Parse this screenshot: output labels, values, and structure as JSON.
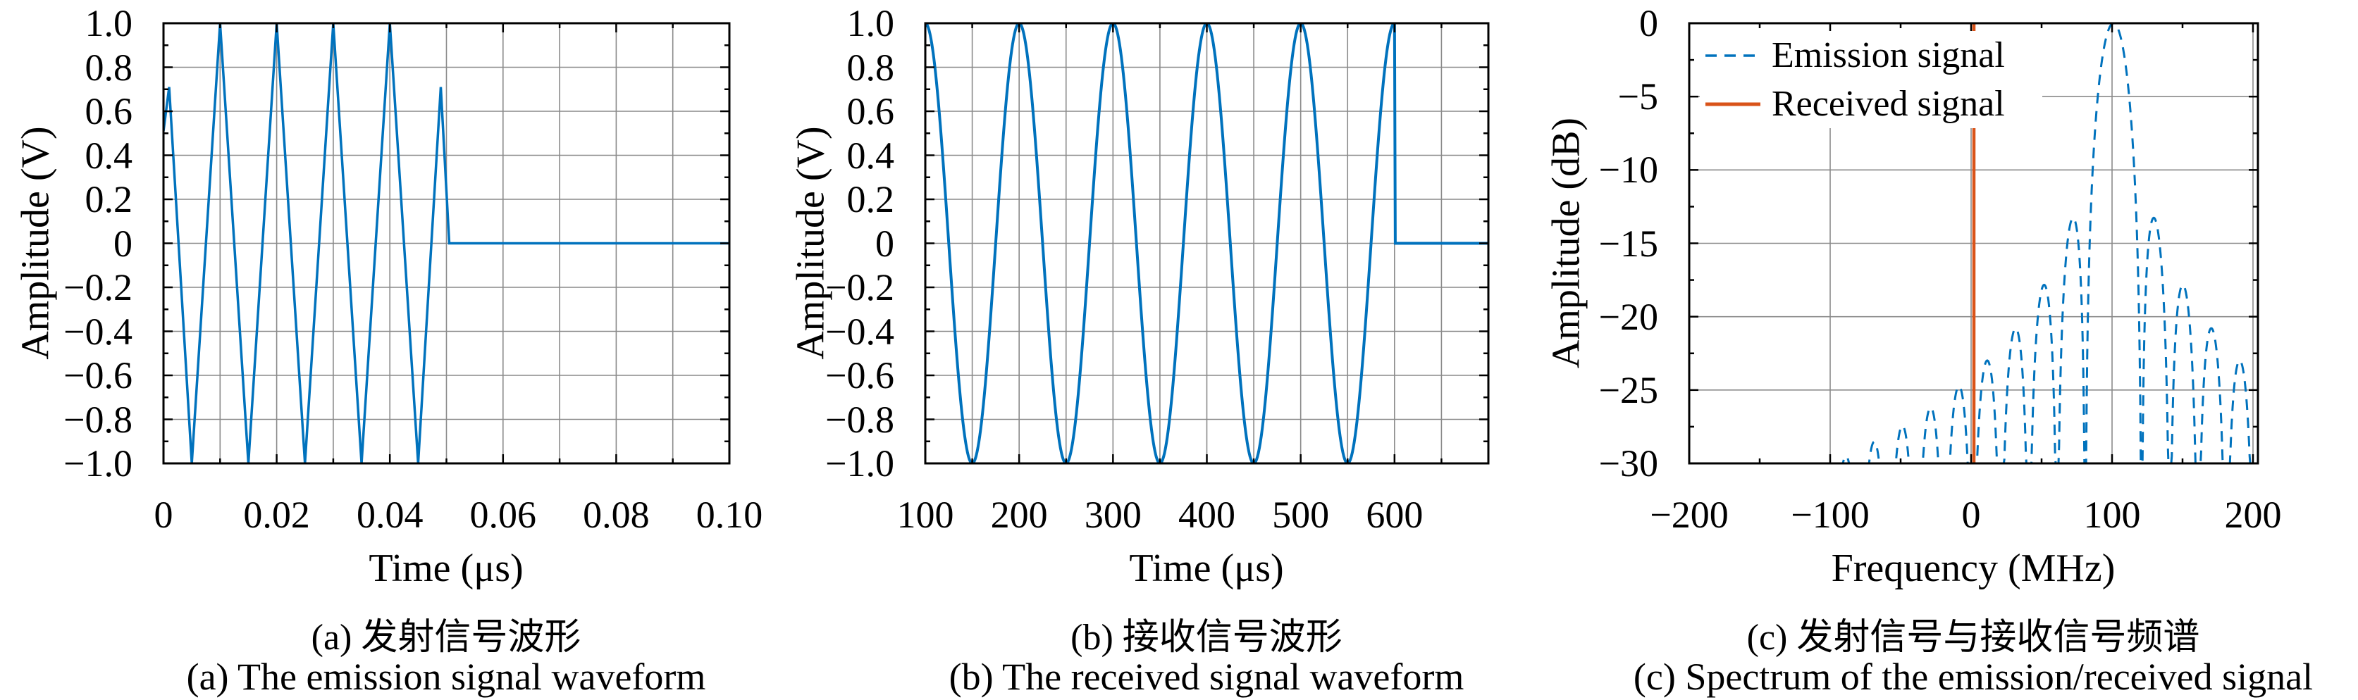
{
  "chart_data": [
    {
      "id": "a",
      "type": "line",
      "title_zh": "(a) 发射信号波形",
      "title_en": "(a) The emission signal waveform",
      "xlabel": "Time (μs)",
      "ylabel": "Amplitude (V)",
      "grid": "on",
      "axes": {
        "xlim": [
          0,
          0.1
        ],
        "ylim": [
          -1,
          1
        ],
        "xticks": {
          "values": [
            0,
            0.02,
            0.04,
            0.06,
            0.08,
            0.1
          ],
          "labels": [
            "0",
            "0.02",
            "0.04",
            "0.06",
            "0.08",
            "0.10"
          ]
        },
        "yticks": {
          "values": [
            1,
            0.8,
            0.6,
            0.4,
            0.2,
            0,
            -0.2,
            -0.4,
            -0.6,
            -0.8,
            -1
          ],
          "labels": [
            "1.0",
            "0.8",
            "0.6",
            "0.4",
            "0.2",
            "0",
            "−0.2",
            "−0.4",
            "−0.6",
            "−0.8",
            "−1.0"
          ]
        },
        "x_minor": [
          0.01,
          0.03,
          0.05,
          0.07,
          0.09
        ],
        "y_minor": [
          0.9,
          0.7,
          0.5,
          0.3,
          0.1,
          -0.1,
          -0.3,
          -0.5,
          -0.7,
          -0.9
        ],
        "x_grid": [
          0.01,
          0.02,
          0.03,
          0.04,
          0.05,
          0.06,
          0.07,
          0.08,
          0.09
        ],
        "y_grid": [
          0.8,
          0.6,
          0.4,
          0.2,
          0,
          -0.2,
          -0.4,
          -0.6,
          -0.8
        ]
      },
      "series": [
        {
          "name": "Emission signal",
          "color": "#0072BD",
          "width": 3.5,
          "kind": "polyline",
          "description": "100 MHz sine burst, 5 cycles over 0 to 0.05 us, amplitude 1 V, zero afterwards (coarsely sampled polyline)",
          "points": [
            [
              0,
              0.51
            ],
            [
              0.001,
              0.71
            ],
            [
              0.005,
              -1
            ],
            [
              0.01,
              1
            ],
            [
              0.015,
              -1
            ],
            [
              0.02,
              1
            ],
            [
              0.025,
              -1
            ],
            [
              0.03,
              1
            ],
            [
              0.035,
              -1
            ],
            [
              0.04,
              1
            ],
            [
              0.045,
              -1
            ],
            [
              0.049,
              0.71
            ],
            [
              0.0505,
              0
            ],
            [
              0.1,
              0
            ]
          ]
        }
      ]
    },
    {
      "id": "b",
      "type": "line",
      "title_zh": "(b) 接收信号波形",
      "title_en": "(b) The received signal waveform",
      "xlabel": "Time (μs)",
      "ylabel": "Amplitude (V)",
      "grid": "on",
      "axes": {
        "xlim": [
          100,
          700
        ],
        "ylim": [
          -1,
          1
        ],
        "xticks": {
          "values": [
            100,
            200,
            300,
            400,
            500,
            600
          ],
          "labels": [
            "100",
            "200",
            "300",
            "400",
            "500",
            "600"
          ]
        },
        "yticks": {
          "values": [
            1,
            0.8,
            0.6,
            0.4,
            0.2,
            0,
            -0.2,
            -0.4,
            -0.6,
            -0.8,
            -1
          ],
          "labels": [
            "1.0",
            "0.8",
            "0.6",
            "0.4",
            "0.2",
            "0",
            "−0.2",
            "−0.4",
            "−0.6",
            "−0.8",
            "−1.0"
          ]
        },
        "x_minor": [
          150,
          250,
          350,
          450,
          550,
          650
        ],
        "y_minor": [
          0.9,
          0.7,
          0.5,
          0.3,
          0.1,
          -0.1,
          -0.3,
          -0.5,
          -0.7,
          -0.9
        ],
        "x_grid": [
          150,
          200,
          250,
          300,
          350,
          400,
          450,
          500,
          550,
          600,
          650
        ],
        "y_grid": [
          0.8,
          0.6,
          0.4,
          0.2,
          0,
          -0.2,
          -0.4,
          -0.6,
          -0.8
        ]
      },
      "series": [
        {
          "name": "Received signal",
          "color": "#0072BD",
          "width": 4,
          "kind": "cosine_burst",
          "description": "Cosine burst, period 100 us (peaks at 100,200,300,400,500,600 us; troughs at 150...550 us), amplitude 1 V from 100 to 600 us, zero from 600 to 700 us",
          "params": {
            "t_start": 100,
            "t_end": 600,
            "period": 100,
            "amplitude": 1,
            "samples": 500,
            "flat_until": 700,
            "flat_value": 0
          }
        }
      ]
    },
    {
      "id": "c",
      "type": "line",
      "title_zh": "(c) 发射信号与接收信号频谱",
      "title_en": "(c) Spectrum of the emission/received signal",
      "xlabel": "Frequency (MHz)",
      "ylabel": "Amplitude (dB)",
      "grid": "on",
      "axes": {
        "xlim": [
          -200,
          203.5
        ],
        "ylim": [
          -30,
          0
        ],
        "xticks": {
          "values": [
            -200,
            -100,
            0,
            100,
            200
          ],
          "labels": [
            "−200",
            "−100",
            "0",
            "100",
            "200"
          ]
        },
        "yticks": {
          "values": [
            0,
            -5,
            -10,
            -15,
            -20,
            -25,
            -30
          ],
          "labels": [
            "0",
            "−5",
            "−10",
            "−15",
            "−20",
            "−25",
            "−30"
          ]
        },
        "x_minor": [
          -150,
          -50,
          50,
          150
        ],
        "y_minor": [
          -2.5,
          -7.5,
          -12.5,
          -17.5,
          -22.5,
          -27.5
        ],
        "x_grid": [
          -100,
          0,
          100,
          200
        ],
        "y_grid": [
          -5,
          -10,
          -15,
          -20,
          -25
        ]
      },
      "series": [
        {
          "name": "Emission signal",
          "color": "#0072BD",
          "width": 3,
          "dash": [
            15,
            11
          ],
          "kind": "sinc_db",
          "description": "Sinc-shaped magnitude spectrum of the 5-cycle 100 MHz burst: 0 dB main-lobe peak at ~101 MHz, nulls every 20 MHz, first sidelobe ~ -13 dB, clipped at -30 dB",
          "params": {
            "center": 101,
            "null_spacing": 20,
            "peak_db": 0,
            "clip_db": -30,
            "f_min": -200,
            "f_max": 203.5,
            "step": 0.4
          }
        },
        {
          "name": "Received signal",
          "color": "#D95319",
          "width": 4.5,
          "kind": "vline",
          "description": "Narrow spectral line of the received signal at ~0 MHz (just right of 0), spanning -30 dB to 0 dB",
          "params": {
            "x": 2,
            "y_bottom": -30,
            "y_top": 0
          }
        }
      ],
      "legend": {
        "position": "top-left",
        "entries": [
          {
            "label": "Emission signal",
            "color": "#0072BD",
            "dashed": true
          },
          {
            "label": "Received signal",
            "color": "#D95319",
            "dashed": false
          }
        ]
      }
    }
  ],
  "style": {
    "grid_color": "#8a8a8a",
    "axis_color": "#000000",
    "background": "#ffffff"
  }
}
